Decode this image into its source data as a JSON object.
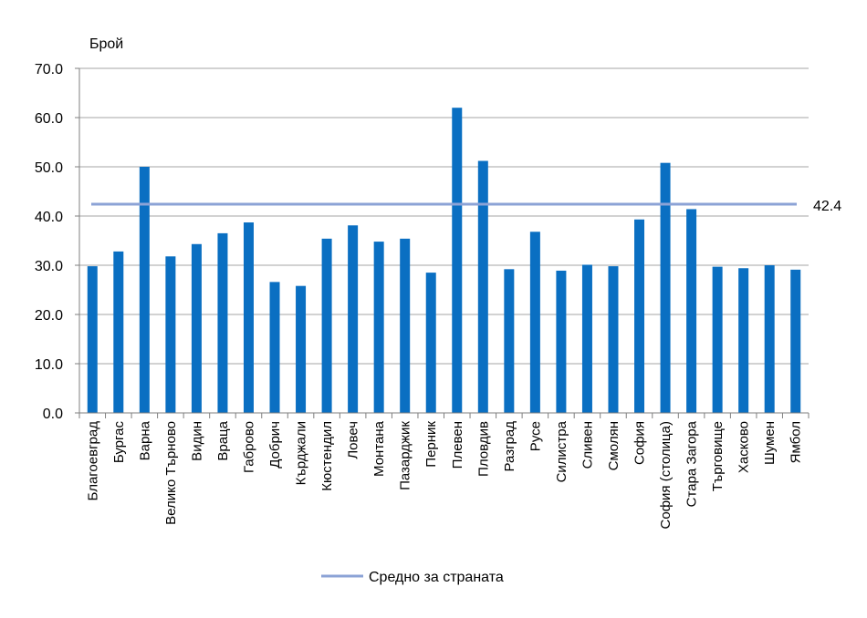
{
  "chart_data": {
    "type": "bar",
    "ylabel": "Брой",
    "xlabel": "",
    "ylim": [
      0,
      70
    ],
    "ytick_step": 10,
    "grid": true,
    "categories": [
      "Благоевград",
      "Бургас",
      "Варна",
      "Велико Търново",
      "Видин",
      "Враца",
      "Габрово",
      "Добрич",
      "Кърджали",
      "Кюстендил",
      "Ловеч",
      "Монтана",
      "Пазарджик",
      "Перник",
      "Плевен",
      "Пловдив",
      "Разград",
      "Русе",
      "Силистра",
      "Сливен",
      "Смолян",
      "София",
      "София (столица)",
      "Стара Загора",
      "Търговище",
      "Хасково",
      "Шумен",
      "Ямбол"
    ],
    "values": [
      29.8,
      32.8,
      50.0,
      31.8,
      34.3,
      36.5,
      38.7,
      26.6,
      25.8,
      35.4,
      38.1,
      34.8,
      35.4,
      28.5,
      62.0,
      51.2,
      29.2,
      36.8,
      28.9,
      30.1,
      29.8,
      39.3,
      50.8,
      41.4,
      29.7,
      29.4,
      30.0,
      29.1
    ],
    "average": {
      "name": "Средно за страната",
      "value": 42.4,
      "label": "42.4"
    },
    "legend_position": "bottom",
    "colors": {
      "bar": "#0a6fc2",
      "average_line": "#8ca3d6",
      "grid": "#a6a6a6",
      "axis": "#7f7f7f"
    }
  }
}
